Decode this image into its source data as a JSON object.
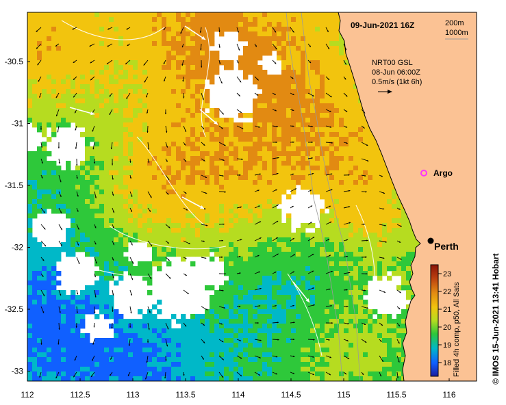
{
  "header": {
    "date_title": "09-Jun-2021 16Z",
    "isobath_shallow": "200m",
    "isobath_deep": "1000m"
  },
  "current_legend": {
    "line1": "NRT00 GSL",
    "line2": "08-Jun 06:00Z",
    "line3": "0.5m/s (1kt 6h)"
  },
  "places": {
    "argo": "Argo",
    "perth": "Perth"
  },
  "colorbar": {
    "label": "Filled 4h comp, p50, All Sats",
    "ticks": [
      "23",
      "22",
      "21",
      "20",
      "19",
      "18"
    ],
    "colors": [
      "#1c1c9e",
      "#1060ff",
      "#00b8c8",
      "#2ec83a",
      "#b6dc20",
      "#f2c40e",
      "#e28a12",
      "#bb4010",
      "#8a1408"
    ]
  },
  "credit": "© IMOS 15-Jun-2021 13:41 Hobart",
  "axes": {
    "x_ticks": [
      "112",
      "112.5",
      "113",
      "113.5",
      "114",
      "114.5",
      "115",
      "115.5",
      "116"
    ],
    "y_ticks": [
      "-30.5",
      "-31",
      "-31.5",
      "-32",
      "-32.5",
      "-33"
    ]
  },
  "colors": {
    "land": "#fbc294",
    "no_data": "#ffffff",
    "argo_marker": "#ff33ff",
    "perth_marker": "#000000"
  }
}
